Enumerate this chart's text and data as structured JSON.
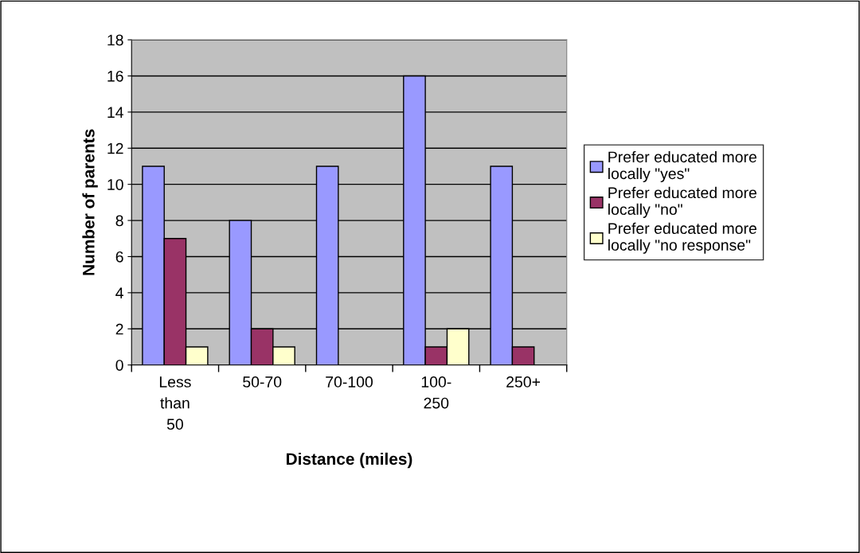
{
  "chart_data": {
    "type": "bar",
    "xlabel": "Distance (miles)",
    "ylabel": "Number of parents",
    "categories": [
      "Less\nthan\n50",
      "50-70",
      "70-100",
      "100-\n250",
      "250+"
    ],
    "series": [
      {
        "name": "Prefer educated more\nlocally \"yes\"",
        "color": "#9999ff",
        "values": [
          11,
          8,
          11,
          16,
          11
        ]
      },
      {
        "name": "Prefer educated more\nlocally \"no\"",
        "color": "#993366",
        "values": [
          7,
          2,
          null,
          1,
          1
        ]
      },
      {
        "name": "Prefer educated more\nlocally \"no response\"",
        "color": "#ffffcc",
        "values": [
          1,
          1,
          null,
          2,
          null
        ]
      }
    ],
    "ylim": [
      0,
      18
    ],
    "yticks": [
      0,
      2,
      4,
      6,
      8,
      10,
      12,
      14,
      16,
      18
    ],
    "grid": "y",
    "legend": "right"
  }
}
